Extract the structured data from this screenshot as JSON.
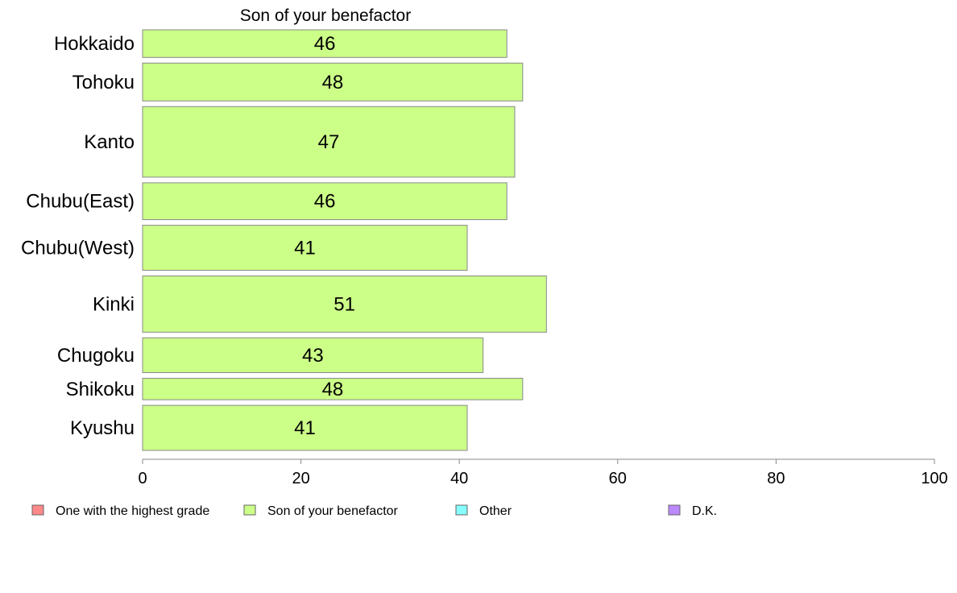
{
  "chart_data": {
    "type": "bar",
    "orientation": "horizontal",
    "title": "Son of your benefactor",
    "xlabel": "",
    "ylabel": "",
    "xlim": [
      0,
      100
    ],
    "xticks": [
      0,
      20,
      40,
      60,
      80,
      100
    ],
    "grid": false,
    "categories": [
      "Hokkaido",
      "Tohoku",
      "Kanto",
      "Chubu(East)",
      "Chubu(West)",
      "Kinki",
      "Chugoku",
      "Shikoku",
      "Kyushu"
    ],
    "bar_weights": [
      1.35,
      1.85,
      3.45,
      1.8,
      2.2,
      2.75,
      1.7,
      1.05,
      2.2
    ],
    "series": [
      {
        "name": "Son of your benefactor",
        "values": [
          46,
          48,
          47,
          46,
          41,
          51,
          43,
          48,
          41
        ],
        "labels": [
          "46",
          "48",
          "47",
          "46",
          "41",
          "51",
          "43",
          "48",
          "41"
        ],
        "color": "#ccff88"
      }
    ],
    "legend": {
      "placement": "bottom",
      "entries": [
        {
          "name": "One with the highest grade",
          "color": "#ff8888"
        },
        {
          "name": "Son of your benefactor",
          "color": "#ccff88"
        },
        {
          "name": "Other",
          "color": "#88ffff"
        },
        {
          "name": "D.K.",
          "color": "#bb88ff"
        }
      ]
    },
    "bar_border_color": "#888888",
    "axis_color": "#888888"
  }
}
